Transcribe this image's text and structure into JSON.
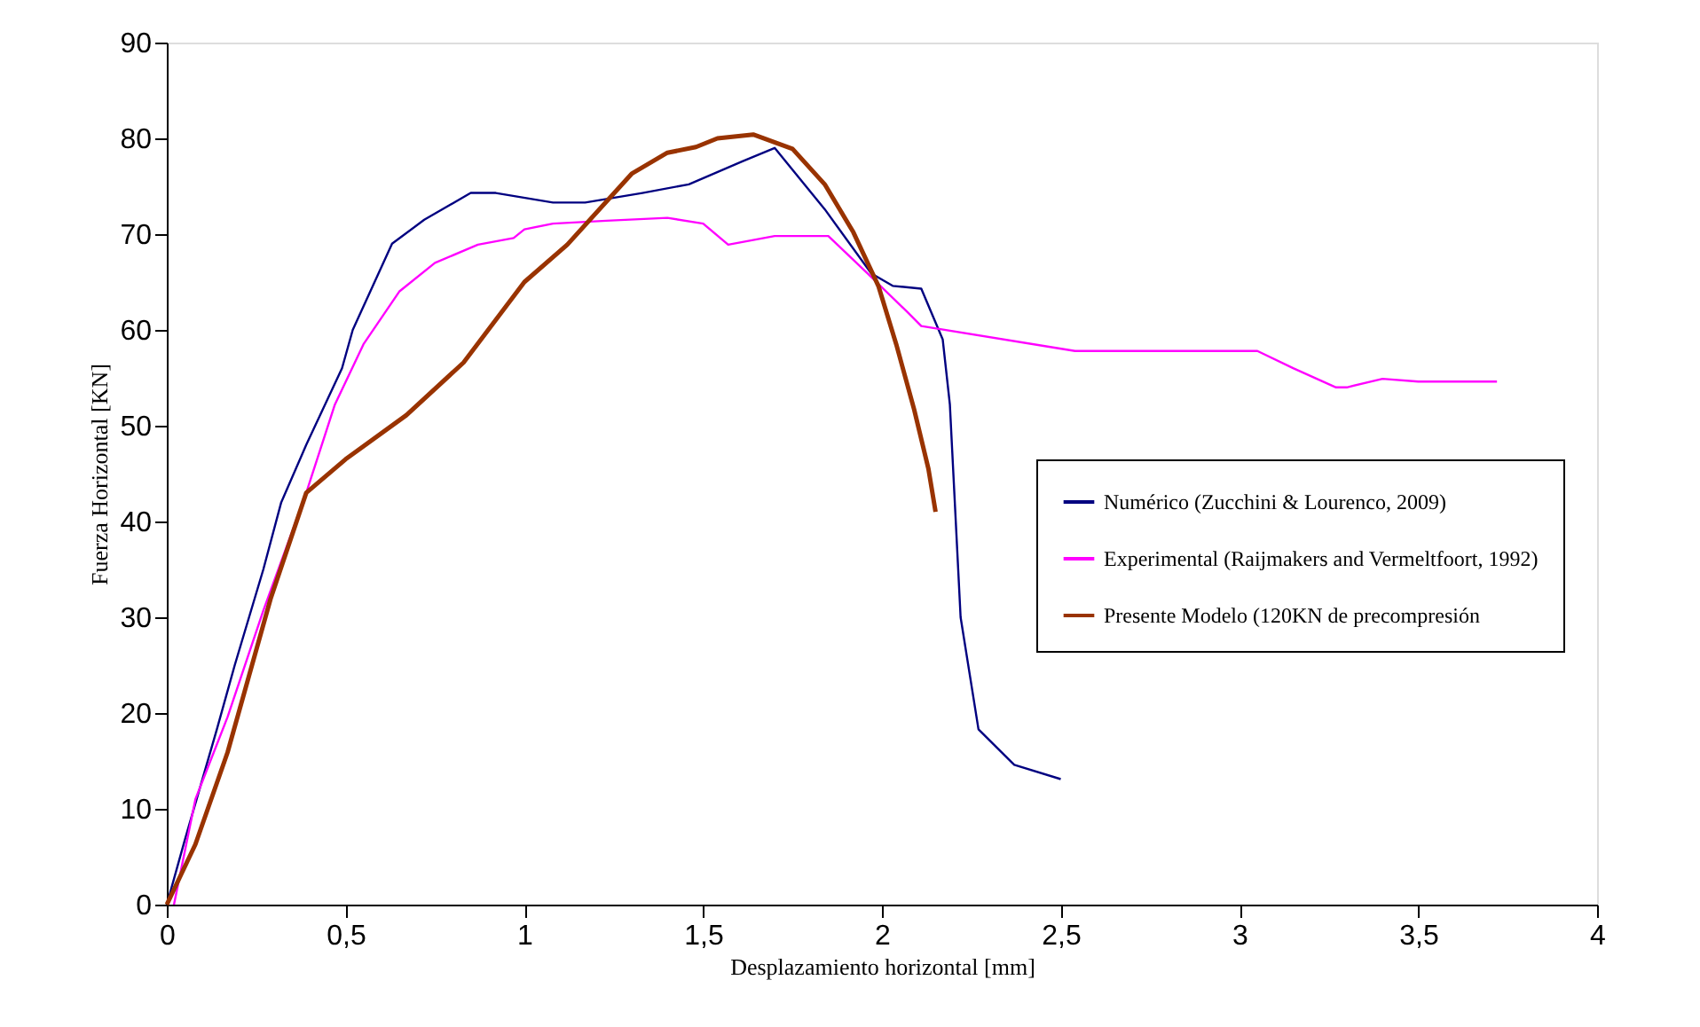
{
  "chart_data": {
    "type": "line",
    "xlabel": "Desplazamiento horizontal [mm]",
    "ylabel": "Fuerza Horizontal [KN]",
    "xlim": [
      0,
      4
    ],
    "xticks": [
      0,
      {
        "value": 0.5,
        "label": "0,5"
      },
      1,
      {
        "value": 1.5,
        "label": "1,5"
      },
      2,
      {
        "value": 2.5,
        "label": "2,5"
      },
      3,
      {
        "value": 3.5,
        "label": "3,5"
      },
      4
    ],
    "ylim": [
      0,
      90
    ],
    "yticks": [
      0,
      10,
      20,
      30,
      40,
      50,
      60,
      70,
      80,
      90
    ],
    "grid": false,
    "legend": "right",
    "marker": "none",
    "line_style": "solid",
    "series": [
      {
        "name": "Numérico (Zucchini & Lourenco, 2009)",
        "color": "#000080",
        "x": [
          0,
          0.05,
          0.14,
          0.19,
          0.27,
          0.32,
          0.39,
          0.49,
          0.52,
          0.63,
          0.72,
          0.85,
          0.92,
          1.08,
          1.17,
          1.33,
          1.46,
          1.61,
          1.7,
          1.84,
          1.97,
          2.03,
          2.11,
          2.17,
          2.19,
          2.22,
          2.27,
          2.37,
          2.5
        ],
        "values": [
          0,
          6.7,
          18.3,
          25,
          35,
          42,
          48,
          56,
          60,
          69,
          71.5,
          74.3,
          74.3,
          73.3,
          73.3,
          74.3,
          75.2,
          77.6,
          79,
          72.6,
          65.9,
          64.6,
          64.3,
          59,
          52.2,
          30,
          18.3,
          14.6,
          13.1
        ]
      },
      {
        "name": "Experimental (Raijmakers and Vermeltfoort, 1992)",
        "color": "#ff00ff",
        "x": [
          0.02,
          0.08,
          0.17,
          0.27,
          0.39,
          0.47,
          0.55,
          0.65,
          0.75,
          0.87,
          0.97,
          1.0,
          1.08,
          1.23,
          1.4,
          1.5,
          1.57,
          1.7,
          1.85,
          1.96,
          2.07,
          2.11,
          2.49,
          2.54,
          3.05,
          3.15,
          3.27,
          3.3,
          3.4,
          3.5,
          3.72
        ],
        "values": [
          0,
          11,
          19.6,
          30.7,
          43,
          52.2,
          58.5,
          64,
          67,
          68.9,
          69.6,
          70.5,
          71.1,
          71.4,
          71.7,
          71.1,
          68.9,
          69.8,
          69.8,
          65.9,
          61.9,
          60.4,
          58.1,
          57.8,
          57.8,
          56,
          54,
          54,
          54.9,
          54.6,
          54.6
        ]
      },
      {
        "name": "Presente Modelo (120KN de precompresión",
        "color": "#993300",
        "x": [
          0,
          0.08,
          0.17,
          0.29,
          0.39,
          0.5,
          0.67,
          0.83,
          1.0,
          1.12,
          1.3,
          1.4,
          1.48,
          1.54,
          1.64,
          1.75,
          1.84,
          1.92,
          1.99,
          2.04,
          2.09,
          2.13,
          2.15
        ],
        "values": [
          0,
          6.3,
          15.9,
          31.9,
          43,
          46.5,
          51.1,
          56.6,
          65,
          68.9,
          76.3,
          78.5,
          79.1,
          80,
          80.4,
          78.9,
          75.2,
          70.2,
          64.6,
          58.5,
          51.7,
          45.5,
          41
        ]
      }
    ]
  }
}
